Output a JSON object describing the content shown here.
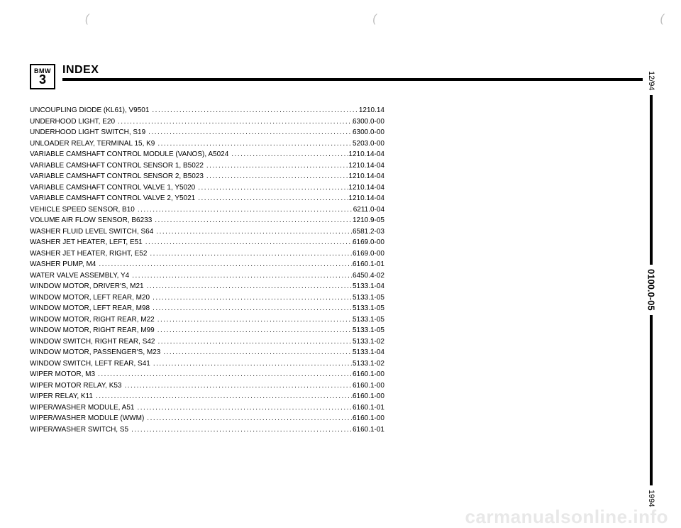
{
  "badge": {
    "brand": "BMW",
    "series": "3"
  },
  "header": {
    "title": "INDEX"
  },
  "side": {
    "top": "12/94",
    "section": "0100.0-05",
    "year": "1994"
  },
  "watermark": "carmanualsonline.info",
  "entries": [
    {
      "label": "UNCOUPLING DIODE (KL61), V9501",
      "page": "1210.14"
    },
    {
      "label": "UNDERHOOD LIGHT, E20",
      "page": "6300.0-00"
    },
    {
      "label": "UNDERHOOD LIGHT SWITCH, S19",
      "page": "6300.0-00"
    },
    {
      "label": "UNLOADER RELAY, TERMINAL 15, K9",
      "page": "5203.0-00"
    },
    {
      "label": "VARIABLE CAMSHAFT CONTROL MODULE (VANOS), A5024",
      "page": "1210.14-04"
    },
    {
      "label": "VARIABLE CAMSHAFT CONTROL SENSOR 1, B5022",
      "page": "1210.14-04"
    },
    {
      "label": "VARIABLE CAMSHAFT CONTROL SENSOR 2, B5023",
      "page": "1210.14-04"
    },
    {
      "label": "VARIABLE CAMSHAFT CONTROL VALVE 1, Y5020",
      "page": "1210.14-04"
    },
    {
      "label": "VARIABLE CAMSHAFT CONTROL VALVE 2, Y5021",
      "page": "1210.14-04"
    },
    {
      "label": "VEHICLE SPEED SENSOR, B10",
      "page": "6211.0-04"
    },
    {
      "label": "VOLUME AIR FLOW SENSOR, B6233",
      "page": "1210.9-05"
    },
    {
      "label": "WASHER FLUID LEVEL SWITCH, S64",
      "page": "6581.2-03"
    },
    {
      "label": "WASHER JET HEATER, LEFT, E51",
      "page": "6169.0-00"
    },
    {
      "label": "WASHER JET HEATER, RIGHT, E52",
      "page": "6169.0-00"
    },
    {
      "label": "WASHER PUMP, M4",
      "page": "6160.1-01"
    },
    {
      "label": "WATER VALVE ASSEMBLY, Y4",
      "page": "6450.4-02"
    },
    {
      "label": "WINDOW MOTOR, DRIVER'S, M21",
      "page": "5133.1-04"
    },
    {
      "label": "WINDOW MOTOR, LEFT REAR, M20",
      "page": "5133.1-05"
    },
    {
      "label": "WINDOW MOTOR, LEFT REAR, M98",
      "page": "5133.1-05"
    },
    {
      "label": "WINDOW MOTOR, RIGHT REAR, M22",
      "page": "5133.1-05"
    },
    {
      "label": "WINDOW MOTOR, RIGHT REAR, M99",
      "page": "5133.1-05"
    },
    {
      "label": "WINDOW SWITCH, RIGHT REAR, S42",
      "page": "5133.1-02"
    },
    {
      "label": "WINDOW MOTOR, PASSENGER'S, M23",
      "page": "5133.1-04"
    },
    {
      "label": "WINDOW SWITCH, LEFT REAR, S41",
      "page": "5133.1-02"
    },
    {
      "label": "WIPER MOTOR, M3",
      "page": "6160.1-00"
    },
    {
      "label": "WIPER MOTOR RELAY, K53",
      "page": "6160.1-00"
    },
    {
      "label": "WIPER RELAY, K11",
      "page": "6160.1-00"
    },
    {
      "label": "WIPER/WASHER MODULE, A51",
      "page": "6160.1-01"
    },
    {
      "label": "WIPER/WASHER MODULE (WWM)",
      "page": "6160.1-00"
    },
    {
      "label": "WIPER/WASHER SWITCH, S5",
      "page": "6160.1-01"
    }
  ]
}
